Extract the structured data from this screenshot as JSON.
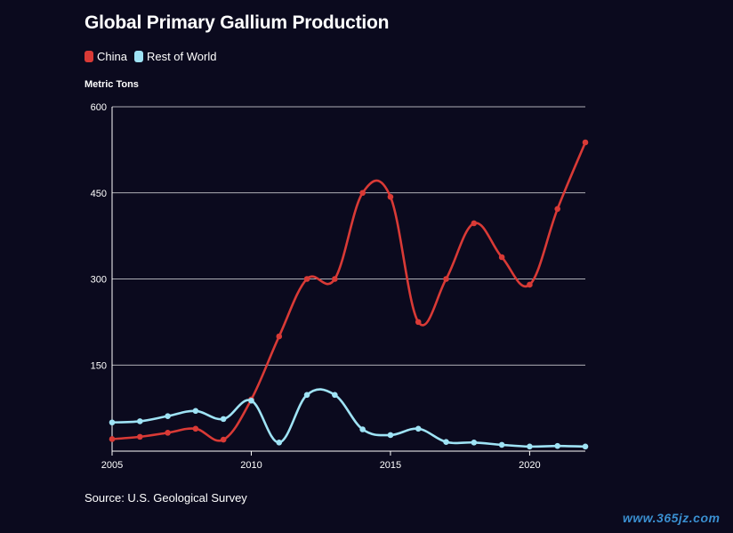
{
  "title": "Global Primary Gallium Production",
  "source": "Source: U.S. Geological Survey",
  "watermark": "www.365jz.com",
  "colors": {
    "china": "#d93a36",
    "rest_of_world": "#9fe3f5",
    "background": "#0b0a1e",
    "grid": "#ffffff"
  },
  "chart_data": {
    "type": "line",
    "ylabel": "Metric Tons",
    "xlabel": "",
    "ylim": [
      0,
      600
    ],
    "xlim": [
      2005,
      2022
    ],
    "yticks": [
      150,
      300,
      450,
      600
    ],
    "xticks": [
      2005,
      2010,
      2015,
      2020
    ],
    "grid": "horizontal",
    "legend": "top-left",
    "x": [
      2005,
      2006,
      2007,
      2008,
      2009,
      2010,
      2011,
      2012,
      2013,
      2014,
      2015,
      2016,
      2017,
      2018,
      2019,
      2020,
      2021,
      2022
    ],
    "series": [
      {
        "name": "China",
        "color": "#d93a36",
        "values": [
          21,
          25,
          32,
          39,
          20,
          90,
          200,
          300,
          300,
          450,
          443,
          225,
          300,
          397,
          338,
          290,
          422,
          538
        ]
      },
      {
        "name": "Rest of World",
        "color": "#9fe3f5",
        "values": [
          50,
          52,
          61,
          70,
          56,
          88,
          15,
          98,
          98,
          38,
          28,
          39,
          16,
          15,
          11,
          8,
          9,
          8
        ]
      }
    ]
  }
}
